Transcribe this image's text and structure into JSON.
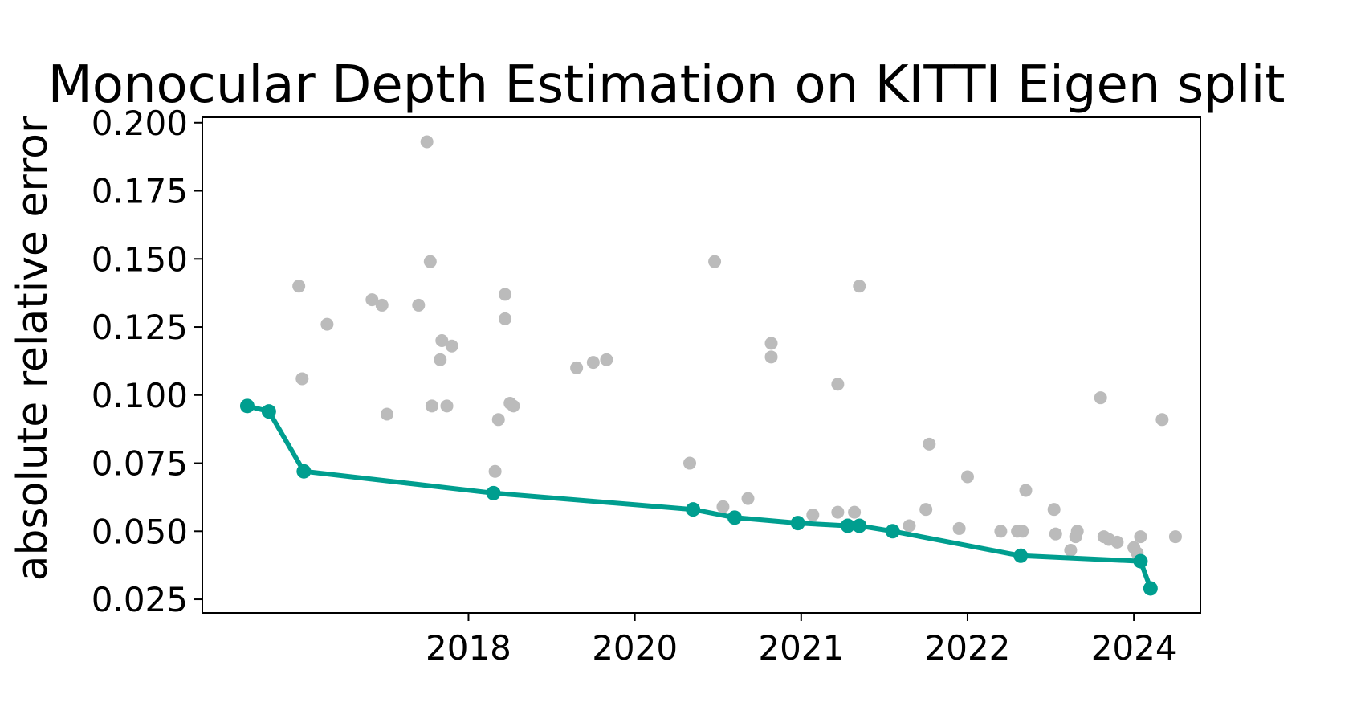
{
  "chart_data": {
    "type": "scatter",
    "title": "Monocular Depth Estimation on KITTI Eigen split",
    "xlabel": "",
    "ylabel": "absolute relative error",
    "x_ticks": [
      {
        "x": 2.2,
        "label": "2018"
      },
      {
        "x": 3.2,
        "label": "2020"
      },
      {
        "x": 4.2,
        "label": "2021"
      },
      {
        "x": 5.2,
        "label": "2022"
      },
      {
        "x": 6.2,
        "label": "2024"
      }
    ],
    "y_ticks": [
      "0.025",
      "0.050",
      "0.075",
      "0.100",
      "0.125",
      "0.150",
      "0.175",
      "0.200"
    ],
    "xlim": [
      0.6,
      6.6
    ],
    "ylim": [
      0.02,
      0.202
    ],
    "grid": false,
    "colors": {
      "points": "#bbbbbb",
      "frontier": "#009e8f"
    },
    "series": [
      {
        "kind": "other-models",
        "points": [
          [
            1.18,
            0.14
          ],
          [
            1.2,
            0.106
          ],
          [
            1.35,
            0.126
          ],
          [
            1.62,
            0.135
          ],
          [
            1.68,
            0.133
          ],
          [
            1.71,
            0.093
          ],
          [
            1.9,
            0.133
          ],
          [
            1.95,
            0.193
          ],
          [
            1.97,
            0.149
          ],
          [
            1.98,
            0.096
          ],
          [
            2.03,
            0.113
          ],
          [
            2.04,
            0.12
          ],
          [
            2.07,
            0.096
          ],
          [
            2.1,
            0.118
          ],
          [
            2.36,
            0.072
          ],
          [
            2.38,
            0.091
          ],
          [
            2.42,
            0.137
          ],
          [
            2.42,
            0.128
          ],
          [
            2.45,
            0.097
          ],
          [
            2.47,
            0.096
          ],
          [
            2.85,
            0.11
          ],
          [
            2.95,
            0.112
          ],
          [
            3.03,
            0.113
          ],
          [
            3.53,
            0.075
          ],
          [
            3.68,
            0.149
          ],
          [
            3.73,
            0.059
          ],
          [
            3.88,
            0.062
          ],
          [
            4.02,
            0.119
          ],
          [
            4.02,
            0.114
          ],
          [
            4.27,
            0.056
          ],
          [
            4.42,
            0.057
          ],
          [
            4.42,
            0.104
          ],
          [
            4.52,
            0.057
          ],
          [
            4.55,
            0.14
          ],
          [
            4.85,
            0.052
          ],
          [
            4.95,
            0.058
          ],
          [
            4.97,
            0.082
          ],
          [
            5.15,
            0.051
          ],
          [
            5.2,
            0.07
          ],
          [
            5.4,
            0.05
          ],
          [
            5.5,
            0.05
          ],
          [
            5.53,
            0.05
          ],
          [
            5.55,
            0.065
          ],
          [
            5.72,
            0.058
          ],
          [
            5.73,
            0.049
          ],
          [
            5.82,
            0.043
          ],
          [
            5.85,
            0.048
          ],
          [
            5.86,
            0.05
          ],
          [
            6.0,
            0.099
          ],
          [
            6.02,
            0.048
          ],
          [
            6.05,
            0.047
          ],
          [
            6.1,
            0.046
          ],
          [
            6.2,
            0.044
          ],
          [
            6.22,
            0.042
          ],
          [
            6.24,
            0.048
          ],
          [
            6.37,
            0.091
          ],
          [
            6.45,
            0.048
          ]
        ]
      },
      {
        "kind": "state-of-the-art",
        "points": [
          [
            0.87,
            0.096
          ],
          [
            1.0,
            0.094
          ],
          [
            1.21,
            0.072
          ],
          [
            2.35,
            0.064
          ],
          [
            3.55,
            0.058
          ],
          [
            3.8,
            0.055
          ],
          [
            4.18,
            0.053
          ],
          [
            4.48,
            0.052
          ],
          [
            4.55,
            0.052
          ],
          [
            4.75,
            0.05
          ],
          [
            5.52,
            0.041
          ],
          [
            6.24,
            0.039
          ],
          [
            6.3,
            0.029
          ]
        ]
      }
    ]
  }
}
